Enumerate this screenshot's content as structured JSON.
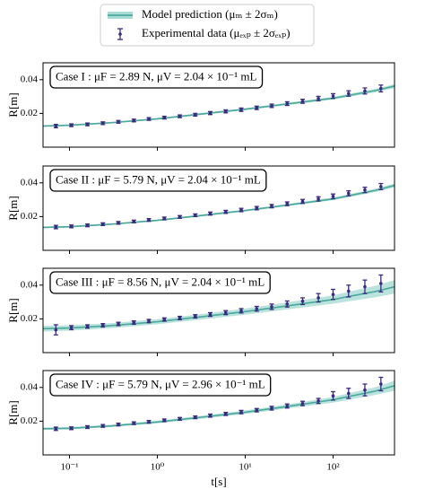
{
  "chart_data": [
    {
      "type": "errorbar",
      "annotation": "Case I :  μF = 2.89 N,  μV = 2.04 × 10⁻¹ mL",
      "ylabel": "R[m]",
      "xlog": true,
      "xlim": [
        0.05,
        500
      ],
      "xticks": [
        0.1,
        1,
        10,
        100
      ],
      "ylim": [
        0,
        0.05
      ],
      "yticks": [
        0.02,
        0.04
      ],
      "series": [
        {
          "name": "Model prediction (μₘ ± 2σₘ)",
          "color": "#4aa89c",
          "band_color": "#a9dcd5",
          "x": [
            0.05,
            0.1,
            0.3,
            1,
            3,
            10,
            30,
            100,
            300,
            500
          ],
          "values": [
            0.0125,
            0.013,
            0.0145,
            0.0168,
            0.0195,
            0.0225,
            0.0256,
            0.029,
            0.0335,
            0.0362
          ],
          "lower": [
            0.012,
            0.0125,
            0.014,
            0.0163,
            0.0189,
            0.0219,
            0.0249,
            0.0282,
            0.0325,
            0.035
          ],
          "upper": [
            0.013,
            0.0135,
            0.015,
            0.0173,
            0.0201,
            0.0231,
            0.0263,
            0.0298,
            0.0345,
            0.0374
          ]
        },
        {
          "name": "Experimental data (μₑₓₚ ± 2σₑₓₚ)",
          "color": "#3b2a7e",
          "x": [
            0.07,
            0.105,
            0.16,
            0.24,
            0.36,
            0.54,
            0.8,
            1.2,
            1.8,
            2.7,
            4,
            6,
            9,
            13.5,
            20,
            30,
            45,
            68,
            100,
            150,
            230,
            350
          ],
          "values": [
            0.0125,
            0.013,
            0.0135,
            0.0142,
            0.015,
            0.0158,
            0.0167,
            0.0175,
            0.0183,
            0.0192,
            0.0202,
            0.0212,
            0.0222,
            0.0233,
            0.0245,
            0.0258,
            0.0272,
            0.0288,
            0.0303,
            0.0318,
            0.0333,
            0.0348
          ],
          "errors": [
            0.001,
            0.0008,
            0.0008,
            0.0008,
            0.0008,
            0.0008,
            0.0008,
            0.0008,
            0.0008,
            0.0008,
            0.0009,
            0.0009,
            0.001,
            0.001,
            0.001,
            0.0011,
            0.0012,
            0.0013,
            0.0014,
            0.0016,
            0.0018,
            0.002
          ]
        }
      ]
    },
    {
      "type": "errorbar",
      "annotation": "Case II :  μF = 5.79 N,  μV = 2.04 × 10⁻¹ mL",
      "ylabel": "R[m]",
      "xlog": true,
      "xlim": [
        0.05,
        500
      ],
      "xticks": [
        0.1,
        1,
        10,
        100
      ],
      "ylim": [
        0,
        0.05
      ],
      "yticks": [
        0.02,
        0.04
      ],
      "series": [
        {
          "color": "#4aa89c",
          "band_color": "#a9dcd5",
          "x": [
            0.05,
            0.1,
            0.3,
            1,
            3,
            10,
            30,
            100,
            300,
            500
          ],
          "values": [
            0.0136,
            0.014,
            0.0155,
            0.0178,
            0.0205,
            0.0236,
            0.0268,
            0.0305,
            0.0355,
            0.0385
          ],
          "lower": [
            0.0131,
            0.0135,
            0.015,
            0.0173,
            0.0199,
            0.023,
            0.0261,
            0.0297,
            0.0345,
            0.0373
          ],
          "upper": [
            0.0141,
            0.0145,
            0.016,
            0.0183,
            0.0211,
            0.0242,
            0.0275,
            0.0313,
            0.0365,
            0.0397
          ]
        },
        {
          "color": "#3b2a7e",
          "x": [
            0.07,
            0.105,
            0.16,
            0.24,
            0.36,
            0.54,
            0.8,
            1.2,
            1.8,
            2.7,
            4,
            6,
            9,
            13.5,
            20,
            30,
            45,
            68,
            100,
            150,
            230,
            350
          ],
          "values": [
            0.0138,
            0.0142,
            0.0148,
            0.0155,
            0.0163,
            0.0171,
            0.018,
            0.0189,
            0.0198,
            0.0208,
            0.0218,
            0.0228,
            0.0239,
            0.025,
            0.0262,
            0.0276,
            0.029,
            0.0305,
            0.032,
            0.0338,
            0.0358,
            0.0378
          ],
          "errors": [
            0.001,
            0.0008,
            0.0008,
            0.0008,
            0.0008,
            0.0008,
            0.0008,
            0.0008,
            0.0008,
            0.0008,
            0.0009,
            0.0009,
            0.001,
            0.001,
            0.001,
            0.0011,
            0.0012,
            0.0013,
            0.0014,
            0.0015,
            0.0016,
            0.0018
          ]
        }
      ]
    },
    {
      "type": "errorbar",
      "annotation": "Case III :  μF = 8.56 N,  μV = 2.04 × 10⁻¹ mL",
      "ylabel": "R[m]",
      "xlog": true,
      "xlim": [
        0.05,
        500
      ],
      "xticks": [
        0.1,
        1,
        10,
        100
      ],
      "ylim": [
        0,
        0.05
      ],
      "yticks": [
        0.02,
        0.04
      ],
      "series": [
        {
          "color": "#4aa89c",
          "band_color": "#a9dcd5",
          "x": [
            0.05,
            0.1,
            0.3,
            1,
            3,
            10,
            30,
            100,
            300,
            500
          ],
          "values": [
            0.0142,
            0.0146,
            0.016,
            0.0183,
            0.0211,
            0.0243,
            0.0277,
            0.0315,
            0.0362,
            0.039
          ],
          "lower": [
            0.0125,
            0.013,
            0.0145,
            0.0168,
            0.0195,
            0.0225,
            0.0256,
            0.029,
            0.0328,
            0.035
          ],
          "upper": [
            0.0159,
            0.0162,
            0.0175,
            0.0198,
            0.0227,
            0.0261,
            0.0298,
            0.034,
            0.0396,
            0.043
          ]
        },
        {
          "color": "#3b2a7e",
          "x": [
            0.07,
            0.105,
            0.16,
            0.24,
            0.36,
            0.54,
            0.8,
            1.2,
            1.8,
            2.7,
            4,
            6,
            9,
            13.5,
            20,
            30,
            45,
            68,
            100,
            150,
            230,
            350
          ],
          "values": [
            0.0135,
            0.0148,
            0.0155,
            0.0162,
            0.017,
            0.0178,
            0.0187,
            0.0196,
            0.0205,
            0.0215,
            0.0226,
            0.0237,
            0.0248,
            0.026,
            0.0272,
            0.0288,
            0.0305,
            0.0325,
            0.0345,
            0.0365,
            0.039,
            0.041
          ],
          "errors": [
            0.003,
            0.0012,
            0.001,
            0.001,
            0.001,
            0.001,
            0.001,
            0.001,
            0.001,
            0.001,
            0.0011,
            0.0012,
            0.0013,
            0.0014,
            0.0016,
            0.0018,
            0.002,
            0.0025,
            0.003,
            0.0035,
            0.004,
            0.005
          ]
        }
      ]
    },
    {
      "type": "errorbar",
      "annotation": "Case IV :  μF = 5.79 N,  μV = 2.96 × 10⁻¹ mL",
      "ylabel": "R[m]",
      "xlabel": "t[s]",
      "xlog": true,
      "xlim": [
        0.05,
        500
      ],
      "xticks": [
        {
          "value": 0.1,
          "label": "10⁻¹"
        },
        {
          "value": 1,
          "label": "10⁰"
        },
        {
          "value": 10,
          "label": "10¹"
        },
        {
          "value": 100,
          "label": "10²"
        }
      ],
      "ylim": [
        0,
        0.05
      ],
      "yticks": [
        0.02,
        0.04
      ],
      "series": [
        {
          "color": "#4aa89c",
          "band_color": "#a9dcd5",
          "x": [
            0.05,
            0.1,
            0.3,
            1,
            3,
            10,
            30,
            100,
            300,
            500
          ],
          "values": [
            0.0155,
            0.0158,
            0.0172,
            0.0195,
            0.0222,
            0.0253,
            0.0287,
            0.0327,
            0.0378,
            0.041
          ],
          "lower": [
            0.0148,
            0.0151,
            0.0165,
            0.0187,
            0.0213,
            0.0243,
            0.0275,
            0.031,
            0.0355,
            0.038
          ],
          "upper": [
            0.0162,
            0.0165,
            0.0179,
            0.0203,
            0.0231,
            0.0263,
            0.0299,
            0.0344,
            0.0401,
            0.044
          ]
        },
        {
          "color": "#3b2a7e",
          "x": [
            0.07,
            0.105,
            0.16,
            0.24,
            0.36,
            0.54,
            0.8,
            1.2,
            1.8,
            2.7,
            4,
            6,
            9,
            13.5,
            20,
            30,
            45,
            68,
            100,
            150,
            230,
            350
          ],
          "values": [
            0.0155,
            0.0158,
            0.0165,
            0.0172,
            0.018,
            0.0188,
            0.0196,
            0.0205,
            0.0214,
            0.0223,
            0.0233,
            0.0243,
            0.0254,
            0.0265,
            0.0277,
            0.029,
            0.0305,
            0.032,
            0.035,
            0.0365,
            0.0385,
            0.042
          ],
          "errors": [
            0.001,
            0.0008,
            0.0008,
            0.0008,
            0.0008,
            0.0008,
            0.0008,
            0.0008,
            0.0008,
            0.0008,
            0.0009,
            0.0009,
            0.001,
            0.001,
            0.0011,
            0.0012,
            0.0013,
            0.0015,
            0.0025,
            0.003,
            0.0035,
            0.004
          ]
        }
      ]
    }
  ]
}
